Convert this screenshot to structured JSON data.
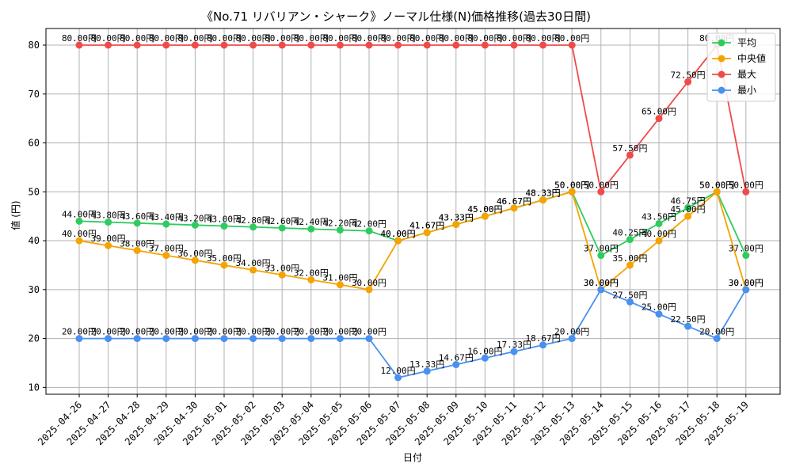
{
  "chart_data": {
    "type": "line",
    "title": "《No.71 リバリアン・シャーク》ノーマル仕様(N)価格推移(過去30日間)",
    "xlabel": "日付",
    "ylabel": "値 (円)",
    "ylim": [
      8.6,
      83.4
    ],
    "yticks": [
      10,
      20,
      30,
      40,
      50,
      60,
      70,
      80
    ],
    "grid": true,
    "legend_position": "top-right",
    "label_suffix": "円",
    "categories": [
      "2025-04-26",
      "2025-04-27",
      "2025-04-28",
      "2025-04-29",
      "2025-04-30",
      "2025-05-01",
      "2025-05-02",
      "2025-05-03",
      "2025-05-04",
      "2025-05-05",
      "2025-05-06",
      "2025-05-07",
      "2025-05-08",
      "2025-05-09",
      "2025-05-10",
      "2025-05-11",
      "2025-05-12",
      "2025-05-13",
      "2025-05-14",
      "2025-05-15",
      "2025-05-16",
      "2025-05-17",
      "2025-05-18",
      "2025-05-19"
    ],
    "series": [
      {
        "name": "平均",
        "color": "#2ecc5e",
        "values": [
          44.0,
          43.8,
          43.6,
          43.4,
          43.2,
          43.0,
          42.8,
          42.6,
          42.4,
          42.2,
          42.0,
          40.0,
          41.67,
          43.33,
          45.0,
          46.67,
          48.33,
          50.0,
          37.0,
          40.25,
          43.5,
          46.75,
          50.0,
          37.0
        ]
      },
      {
        "name": "中央値",
        "color": "#f5a300",
        "values": [
          40.0,
          39.0,
          38.0,
          37.0,
          36.0,
          35.0,
          34.0,
          33.0,
          32.0,
          31.0,
          30.0,
          40.0,
          41.67,
          43.33,
          45.0,
          46.67,
          48.33,
          50.0,
          30.0,
          35.0,
          40.0,
          45.0,
          50.0,
          30.0
        ]
      },
      {
        "name": "最大",
        "color": "#f04a4a",
        "values": [
          80,
          80,
          80,
          80,
          80,
          80,
          80,
          80,
          80,
          80,
          80,
          80,
          80,
          80,
          80,
          80,
          80,
          80,
          50,
          57.5,
          65,
          72.5,
          80,
          50
        ]
      },
      {
        "name": "最小",
        "color": "#4a90f0",
        "values": [
          20,
          20,
          20,
          20,
          20,
          20,
          20,
          20,
          20,
          20,
          20,
          12,
          13.33,
          14.67,
          16,
          17.33,
          18.67,
          20,
          30,
          27.5,
          25,
          22.5,
          20,
          30
        ]
      }
    ]
  }
}
